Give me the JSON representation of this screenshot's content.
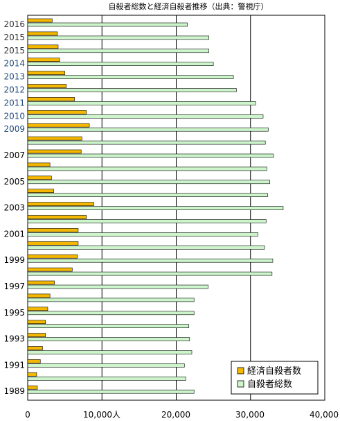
{
  "chart_data": {
    "type": "bar",
    "orientation": "horizontal",
    "title": "自殺者総数と経済自殺者推移（出典：警視庁）",
    "row_labels": [
      "2016",
      "2015",
      "2015",
      "2014",
      "2013",
      "2012",
      "2011",
      "2010",
      "2009",
      "",
      "2007",
      "",
      "2005",
      "",
      "2003",
      "",
      "2001",
      "",
      "1999",
      "",
      "1997",
      "",
      "1995",
      "",
      "1993",
      "",
      "1991",
      "",
      "1989"
    ],
    "row_label_colors": [
      "#333333",
      "#333333",
      "#333333",
      "#224a7a",
      "#224a7a",
      "#224a7a",
      "#224a7a",
      "#224a7a",
      "#224a7a",
      "",
      "#000000",
      "",
      "#000000",
      "",
      "#000000",
      "",
      "#000000",
      "",
      "#000000",
      "",
      "#000000",
      "",
      "#000000",
      "",
      "#000000",
      "",
      "#000000",
      "",
      "#000000"
    ],
    "series": [
      {
        "name": "経済自殺者数",
        "color": "#f5b800",
        "values": [
          3300,
          4000,
          4100,
          4300,
          5000,
          5200,
          6300,
          7900,
          8300,
          7300,
          7200,
          3000,
          3200,
          3500,
          8900,
          7900,
          6800,
          6800,
          6700,
          6000,
          3600,
          3000,
          2700,
          2400,
          2400,
          2000,
          1700,
          1200,
          1300
        ]
      },
      {
        "name": "自殺者総数",
        "color": "#ccf5cc",
        "values": [
          21500,
          24400,
          24400,
          25000,
          27700,
          28100,
          30700,
          31700,
          32400,
          32000,
          33100,
          32200,
          32600,
          32300,
          34400,
          32100,
          31000,
          31900,
          33000,
          32900,
          24300,
          22400,
          22400,
          21700,
          21800,
          22100,
          21100,
          21300,
          22400
        ]
      }
    ],
    "x_ticks": [
      "0",
      "10,000人",
      "20,000",
      "30,000",
      "40,000"
    ],
    "xlim": [
      0,
      40000
    ],
    "grid": true,
    "legend_position": "bottom-right"
  }
}
